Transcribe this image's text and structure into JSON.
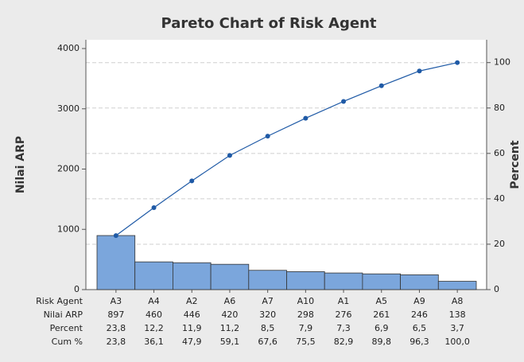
{
  "chart_data": {
    "type": "pareto",
    "title": "Pareto Chart of Risk Agent",
    "y_label": "Nilai ARP",
    "y2_label": "Percent",
    "x_label": "Risk Agent",
    "categories": [
      "A3",
      "A4",
      "A2",
      "A6",
      "A7",
      "A10",
      "A1",
      "A5",
      "A9",
      "A8"
    ],
    "series": [
      {
        "name": "Nilai ARP",
        "color": "#7ba6dc",
        "values": [
          897,
          460,
          446,
          420,
          320,
          298,
          276,
          261,
          246,
          138
        ]
      },
      {
        "name": "Percent",
        "values": [
          23.8,
          12.2,
          11.9,
          11.2,
          8.5,
          7.9,
          7.3,
          6.9,
          6.5,
          3.7
        ],
        "value_labels": [
          "23,8",
          "12,2",
          "11,9",
          "11,2",
          "8,5",
          "7,9",
          "7,3",
          "6,9",
          "6,5",
          "3,7"
        ]
      },
      {
        "name": "Cum %",
        "color": "#1f5aa6",
        "axis": "y2",
        "values": [
          23.8,
          36.1,
          47.9,
          59.1,
          67.6,
          75.5,
          82.9,
          89.8,
          96.3,
          100.0
        ],
        "value_labels": [
          "23,8",
          "36,1",
          "47,9",
          "59,1",
          "67,6",
          "75,5",
          "82,9",
          "89,8",
          "96,3",
          "100,0"
        ]
      }
    ],
    "ylim": [
      0,
      4000
    ],
    "yticks": [
      0,
      1000,
      2000,
      3000,
      4000
    ],
    "y2lim": [
      0,
      106.2
    ],
    "y2ticks": [
      0,
      20,
      40,
      60,
      80,
      100
    ],
    "grid": "y2"
  }
}
